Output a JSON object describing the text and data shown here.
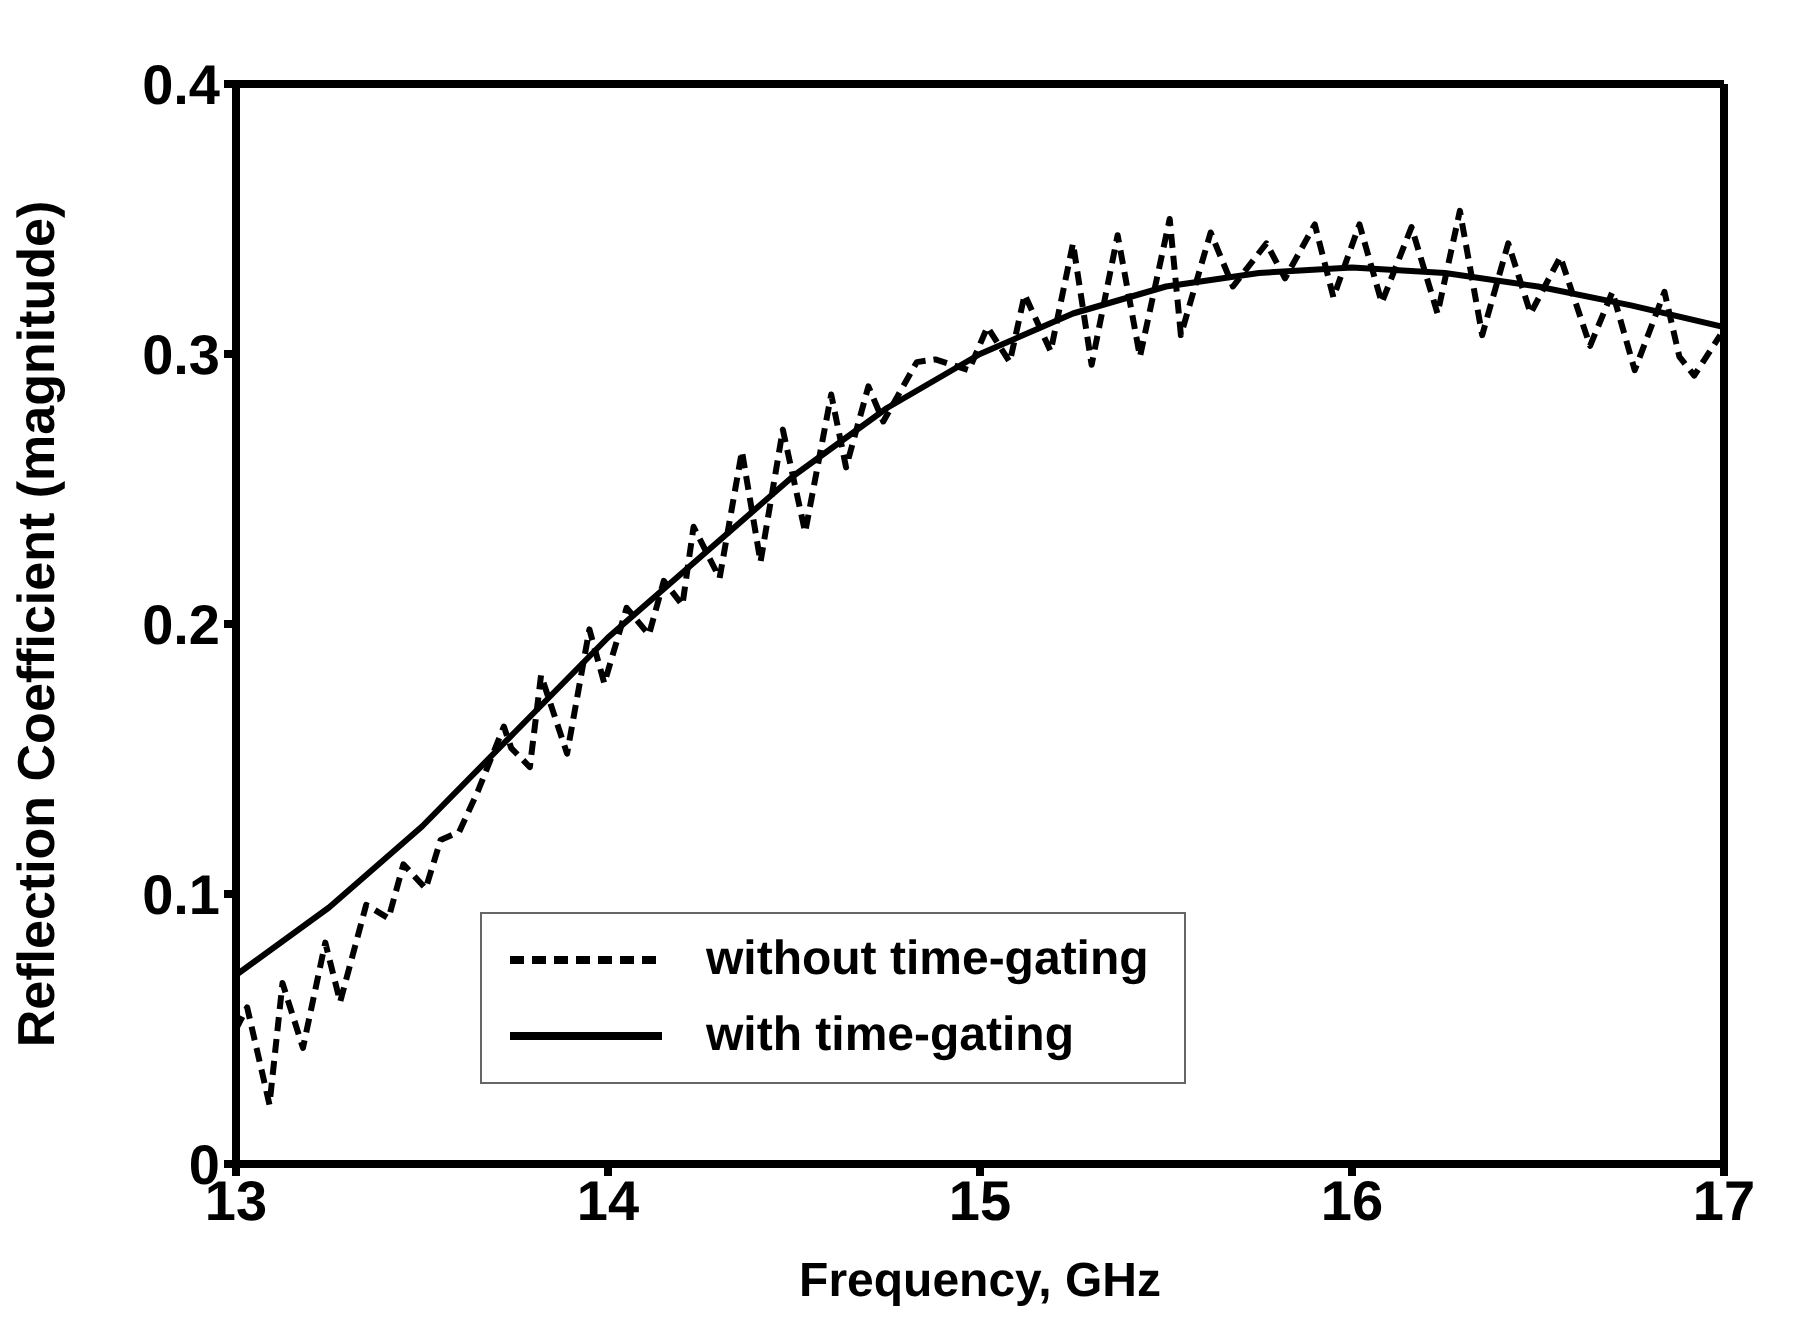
{
  "chart_data": {
    "type": "line",
    "xlabel": "Frequency,  GHz",
    "ylabel": "Reflection  Coefficient (magnitude)",
    "xlim": [
      13,
      17
    ],
    "xticks": [
      13,
      14,
      15,
      16,
      17
    ],
    "ylim": [
      0,
      0.4
    ],
    "yticks": [
      0,
      0.1,
      0.2,
      0.3,
      0.4
    ],
    "grid": false,
    "legend": "bottom",
    "marker": "none",
    "series": [
      {
        "name": "without time-gating",
        "color": "#000000",
        "line_style": "dashed",
        "x": [
          13.0,
          13.03,
          13.09,
          13.125,
          13.18,
          13.24,
          13.28,
          13.35,
          13.41,
          13.45,
          13.51,
          13.55,
          13.6,
          13.65,
          13.72,
          13.74,
          13.79,
          13.82,
          13.89,
          13.95,
          13.99,
          14.05,
          14.11,
          14.15,
          14.2,
          14.23,
          14.3,
          14.36,
          14.41,
          14.47,
          14.53,
          14.6,
          14.64,
          14.7,
          14.74,
          14.83,
          14.88,
          14.97,
          15.02,
          15.08,
          15.12,
          15.19,
          15.25,
          15.3,
          15.37,
          15.43,
          15.51,
          15.54,
          15.62,
          15.68,
          15.77,
          15.82,
          15.9,
          15.95,
          16.02,
          16.08,
          16.16,
          16.23,
          16.29,
          16.35,
          16.42,
          16.48,
          16.56,
          16.64,
          16.7,
          16.76,
          16.84,
          16.88,
          16.92,
          16.99
        ],
        "values": [
          0.05,
          0.058,
          0.022,
          0.067,
          0.043,
          0.082,
          0.06,
          0.096,
          0.091,
          0.111,
          0.102,
          0.12,
          0.123,
          0.138,
          0.162,
          0.154,
          0.147,
          0.181,
          0.152,
          0.198,
          0.178,
          0.206,
          0.196,
          0.216,
          0.207,
          0.236,
          0.217,
          0.264,
          0.223,
          0.272,
          0.234,
          0.285,
          0.258,
          0.288,
          0.275,
          0.297,
          0.298,
          0.294,
          0.31,
          0.297,
          0.322,
          0.301,
          0.341,
          0.296,
          0.344,
          0.299,
          0.35,
          0.307,
          0.345,
          0.325,
          0.341,
          0.328,
          0.348,
          0.321,
          0.348,
          0.319,
          0.347,
          0.315,
          0.353,
          0.307,
          0.341,
          0.315,
          0.336,
          0.303,
          0.323,
          0.294,
          0.323,
          0.299,
          0.292,
          0.307
        ]
      },
      {
        "name": "with time-gating",
        "color": "#000000",
        "line_style": "solid",
        "x": [
          13.0,
          13.25,
          13.5,
          13.75,
          14.0,
          14.25,
          14.5,
          14.75,
          15.0,
          15.25,
          15.5,
          15.75,
          16.0,
          16.25,
          16.5,
          16.75,
          17.0
        ],
        "values": [
          0.07,
          0.095,
          0.125,
          0.16,
          0.195,
          0.225,
          0.255,
          0.28,
          0.3,
          0.315,
          0.325,
          0.33,
          0.332,
          0.33,
          0.325,
          0.318,
          0.31
        ]
      }
    ]
  }
}
